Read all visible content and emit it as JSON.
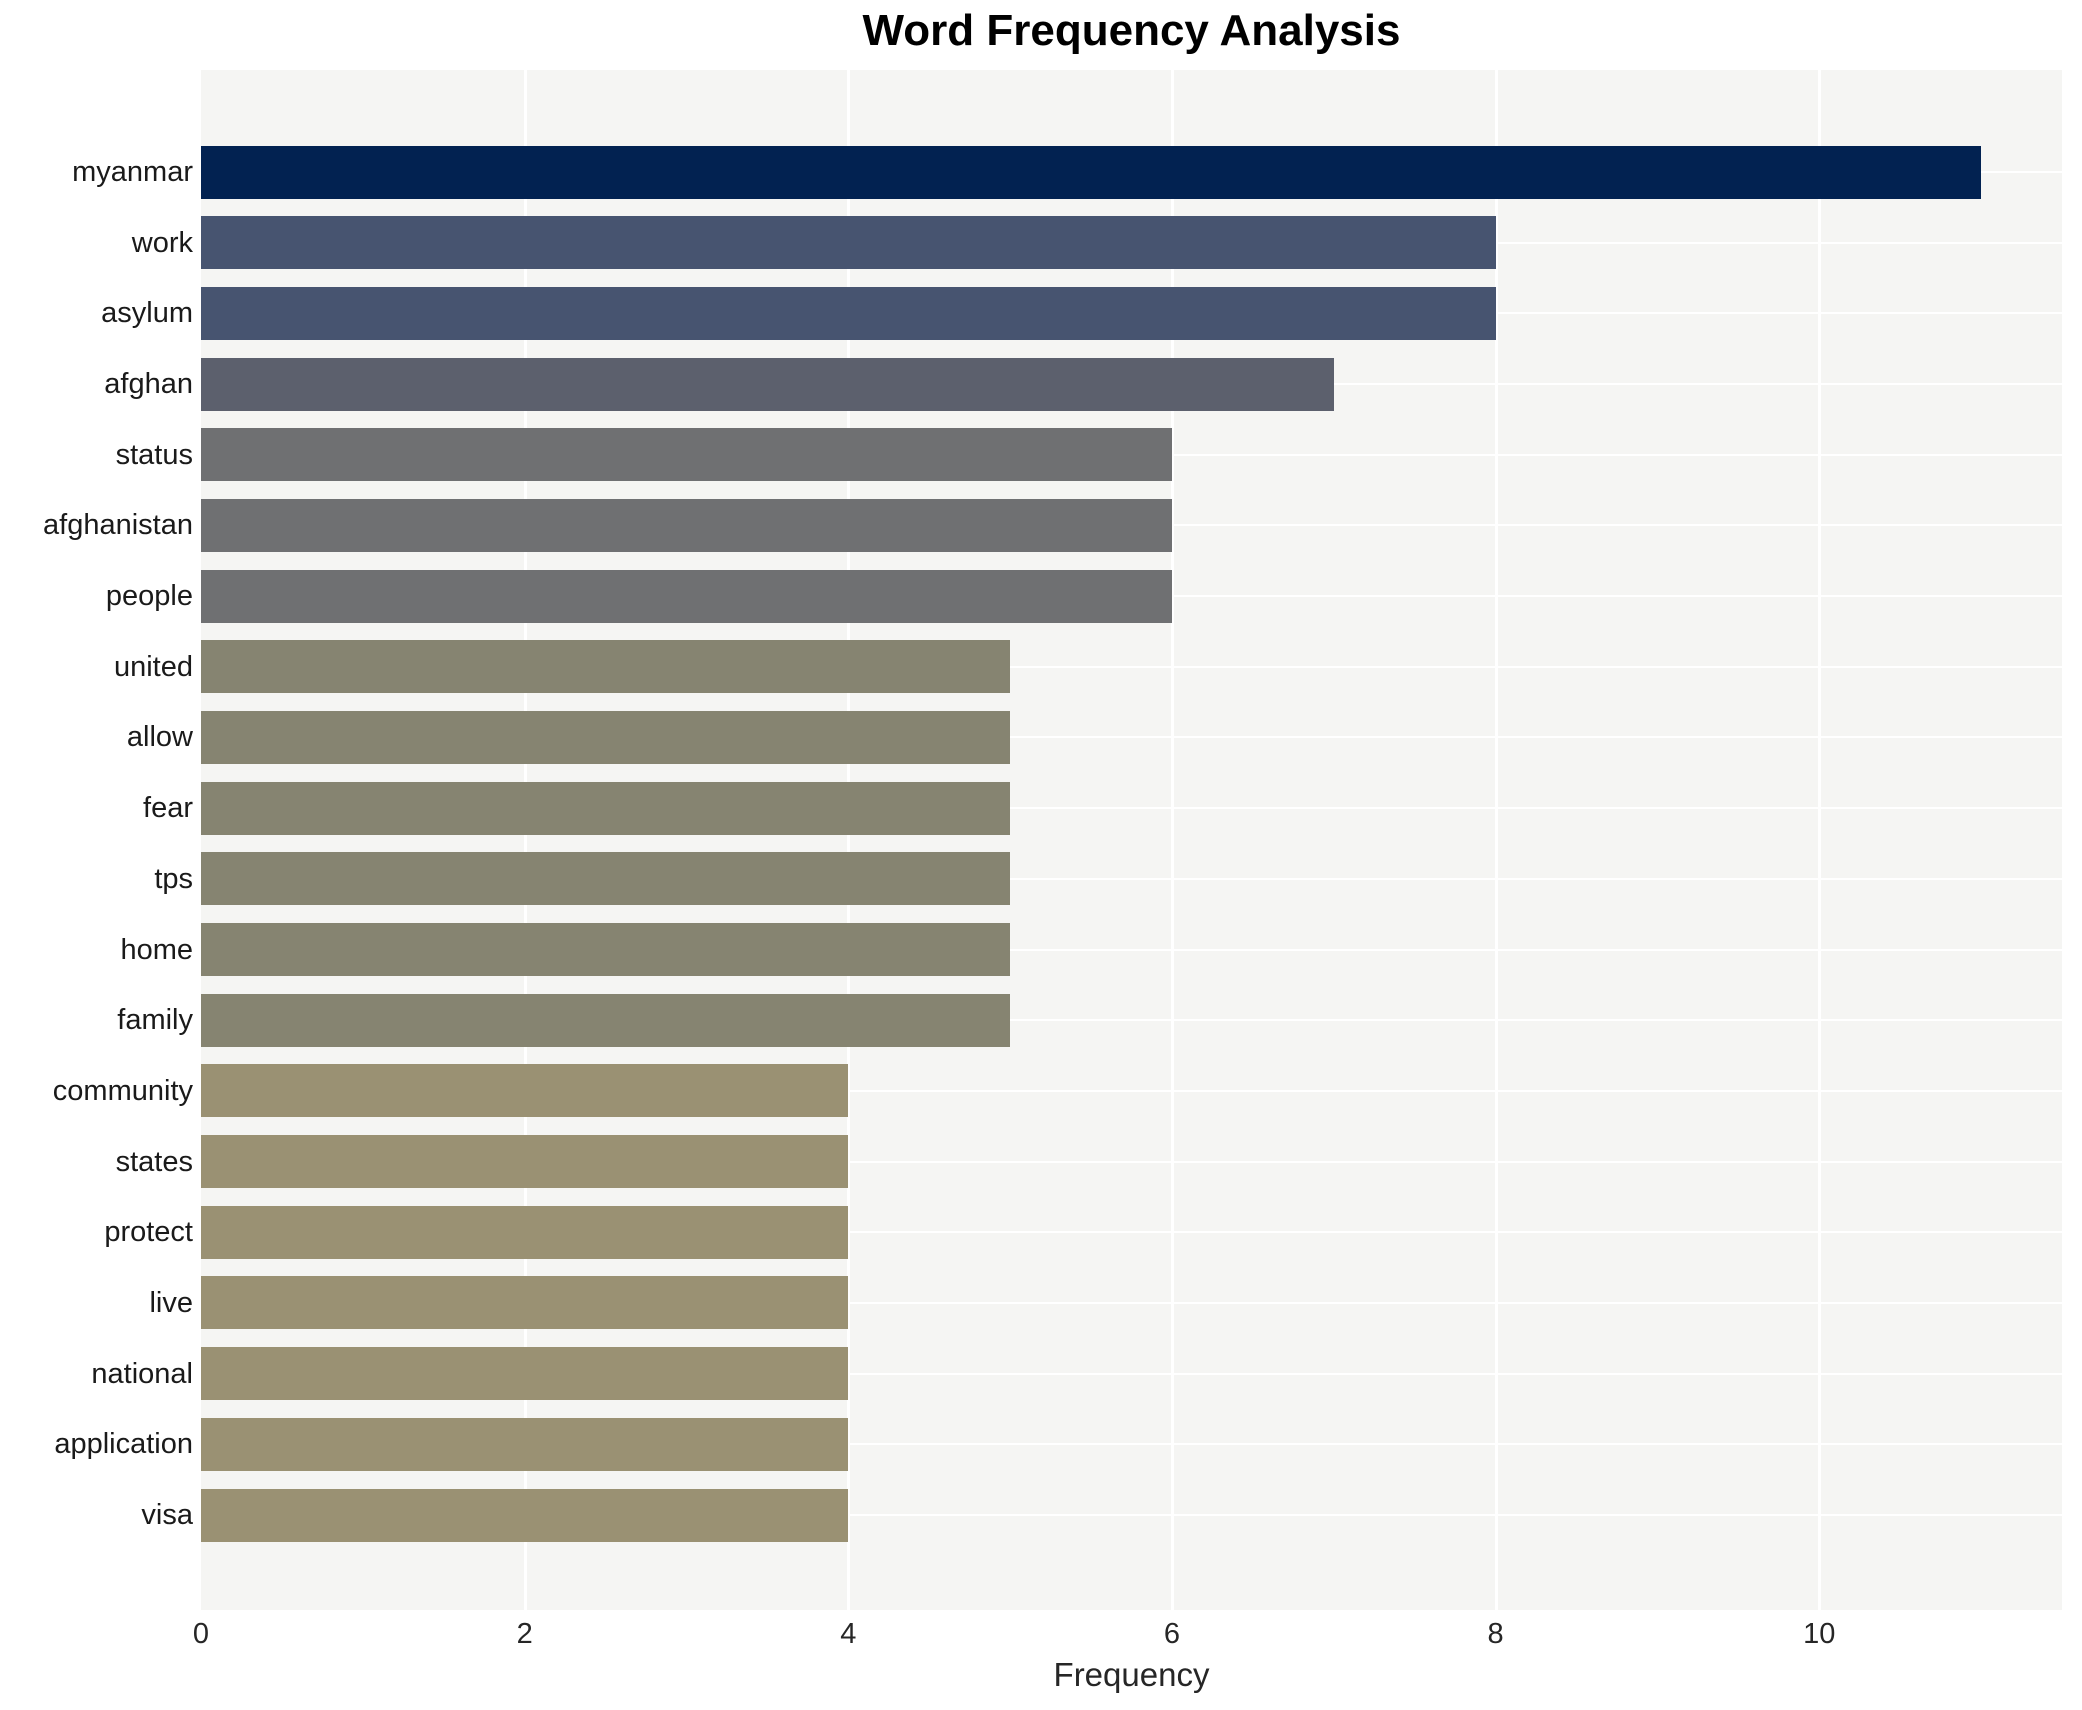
{
  "title": "Word Frequency Analysis",
  "chart_data": {
    "type": "bar",
    "orientation": "horizontal",
    "title": "Word Frequency Analysis",
    "xlabel": "Frequency",
    "ylabel": "",
    "categories": [
      "myanmar",
      "work",
      "asylum",
      "afghan",
      "status",
      "afghanistan",
      "people",
      "united",
      "allow",
      "fear",
      "tps",
      "home",
      "family",
      "community",
      "states",
      "protect",
      "live",
      "national",
      "application",
      "visa"
    ],
    "values": [
      11,
      8,
      8,
      7,
      6,
      6,
      6,
      5,
      5,
      5,
      5,
      5,
      5,
      4,
      4,
      4,
      4,
      4,
      4,
      4
    ],
    "bar_colors": [
      "#022251",
      "#475470",
      "#475470",
      "#5c606d",
      "#6f7072",
      "#6f7072",
      "#6f7072",
      "#868471",
      "#868471",
      "#868471",
      "#868471",
      "#868471",
      "#868471",
      "#9a9173",
      "#9a9173",
      "#9a9173",
      "#9a9173",
      "#9a9173",
      "#9a9173",
      "#9a9173"
    ],
    "xlim": [
      0,
      11.5
    ],
    "xticks": [
      0,
      2,
      4,
      6,
      8,
      10
    ],
    "legend": "none",
    "grid": "vertical white lines at even ticks, horizontal white line at each category center",
    "colors": {
      "plot_background": "#f5f5f3",
      "page_background": "#ffffff",
      "gridline": "#ffffff",
      "title_text": "#000000",
      "axis_text": "#262626",
      "category_text": "#1a1a1a"
    }
  }
}
